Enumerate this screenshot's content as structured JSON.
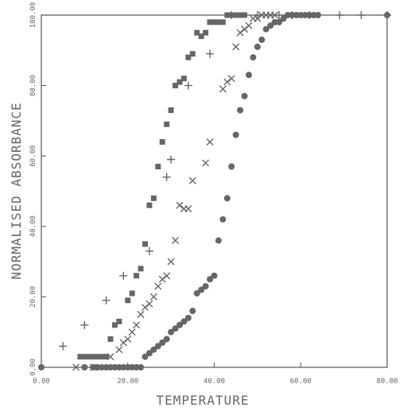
{
  "chart_data": {
    "type": "scatter",
    "title": "",
    "xlabel": "TEMPERATURE",
    "ylabel": "NORMALISED ABSORBANCE",
    "xlim": [
      0,
      80
    ],
    "ylim": [
      0,
      100
    ],
    "x_ticks": [
      "0.00",
      "20.00",
      "40.00",
      "60.00",
      "80.00"
    ],
    "y_ticks": [
      "0.00",
      "20.00",
      "40.00",
      "60.00",
      "80.00",
      "100.00"
    ],
    "grid": false,
    "legend": "none",
    "series": [
      {
        "marker": "plus",
        "points": [
          [
            5,
            6
          ],
          [
            10,
            12
          ],
          [
            15,
            19
          ],
          [
            19,
            26
          ],
          [
            25,
            33
          ],
          [
            29,
            54
          ],
          [
            30,
            59
          ],
          [
            34,
            80
          ],
          [
            39,
            89
          ],
          [
            44,
            100
          ],
          [
            50,
            100
          ],
          [
            55,
            100
          ],
          [
            58,
            100
          ],
          [
            62,
            100
          ],
          [
            69,
            100
          ],
          [
            74,
            100
          ],
          [
            80,
            100
          ]
        ]
      },
      {
        "marker": "square",
        "points": [
          [
            9,
            3
          ],
          [
            10,
            3
          ],
          [
            11,
            3
          ],
          [
            12,
            3
          ],
          [
            13,
            3
          ],
          [
            14,
            3
          ],
          [
            15,
            3
          ],
          [
            16,
            8
          ],
          [
            17,
            12
          ],
          [
            18,
            13
          ],
          [
            20,
            19
          ],
          [
            21,
            21
          ],
          [
            22,
            26
          ],
          [
            23,
            28
          ],
          [
            24,
            35
          ],
          [
            25,
            46
          ],
          [
            26,
            48
          ],
          [
            27,
            57
          ],
          [
            28,
            64
          ],
          [
            29,
            69
          ],
          [
            30,
            73
          ],
          [
            31,
            80
          ],
          [
            32,
            81
          ],
          [
            33,
            82
          ],
          [
            34,
            88
          ],
          [
            35,
            89
          ],
          [
            36,
            95
          ],
          [
            37,
            94
          ],
          [
            38,
            95
          ],
          [
            39,
            98
          ],
          [
            40,
            98
          ],
          [
            41,
            98
          ],
          [
            42,
            98
          ],
          [
            43,
            100
          ],
          [
            44,
            100
          ],
          [
            45,
            100
          ],
          [
            46,
            100
          ],
          [
            47,
            100
          ]
        ]
      },
      {
        "marker": "x",
        "points": [
          [
            8,
            0
          ],
          [
            12,
            0
          ],
          [
            16,
            3
          ],
          [
            18,
            5
          ],
          [
            19,
            7
          ],
          [
            20,
            8
          ],
          [
            21,
            10
          ],
          [
            22,
            12
          ],
          [
            23,
            15
          ],
          [
            24,
            17
          ],
          [
            25,
            18
          ],
          [
            26,
            20
          ],
          [
            27,
            23
          ],
          [
            28,
            25
          ],
          [
            29,
            26
          ],
          [
            30,
            30
          ],
          [
            31,
            36
          ],
          [
            32,
            46
          ],
          [
            33,
            45
          ],
          [
            34,
            45
          ],
          [
            35,
            53
          ],
          [
            38,
            58
          ],
          [
            39,
            64
          ],
          [
            42,
            79
          ],
          [
            43,
            81
          ],
          [
            44,
            82
          ],
          [
            45,
            91
          ],
          [
            46,
            95
          ],
          [
            47,
            96
          ],
          [
            48,
            97
          ],
          [
            49,
            99
          ],
          [
            50,
            99
          ],
          [
            51,
            100
          ],
          [
            52,
            100
          ],
          [
            53,
            100
          ],
          [
            54,
            100
          ]
        ]
      },
      {
        "marker": "circle",
        "points": [
          [
            0,
            0
          ],
          [
            10,
            0
          ],
          [
            12,
            0
          ],
          [
            13,
            0
          ],
          [
            14,
            0
          ],
          [
            15,
            0
          ],
          [
            16,
            0
          ],
          [
            17,
            0
          ],
          [
            18,
            0
          ],
          [
            19,
            0
          ],
          [
            20,
            0
          ],
          [
            21,
            0
          ],
          [
            22,
            0
          ],
          [
            23,
            0
          ],
          [
            24,
            3
          ],
          [
            25,
            4
          ],
          [
            26,
            5
          ],
          [
            27,
            6
          ],
          [
            28,
            7
          ],
          [
            29,
            8
          ],
          [
            30,
            10
          ],
          [
            31,
            11
          ],
          [
            32,
            12
          ],
          [
            33,
            13
          ],
          [
            34,
            14
          ],
          [
            35,
            16
          ],
          [
            36,
            21
          ],
          [
            37,
            22
          ],
          [
            38,
            23
          ],
          [
            39,
            25
          ],
          [
            40,
            26
          ],
          [
            41,
            36
          ],
          [
            42,
            42
          ],
          [
            43,
            48
          ],
          [
            44,
            57
          ],
          [
            45,
            66
          ],
          [
            46,
            73
          ],
          [
            47,
            77
          ],
          [
            48,
            83
          ],
          [
            49,
            88
          ],
          [
            50,
            91
          ],
          [
            51,
            93
          ],
          [
            52,
            96
          ],
          [
            53,
            97
          ],
          [
            54,
            98
          ],
          [
            55,
            98
          ],
          [
            56,
            99
          ],
          [
            57,
            100
          ],
          [
            58,
            100
          ],
          [
            59,
            100
          ],
          [
            60,
            100
          ],
          [
            61,
            100
          ],
          [
            62,
            100
          ],
          [
            63,
            100
          ],
          [
            64,
            100
          ],
          [
            80,
            100
          ]
        ]
      }
    ]
  }
}
